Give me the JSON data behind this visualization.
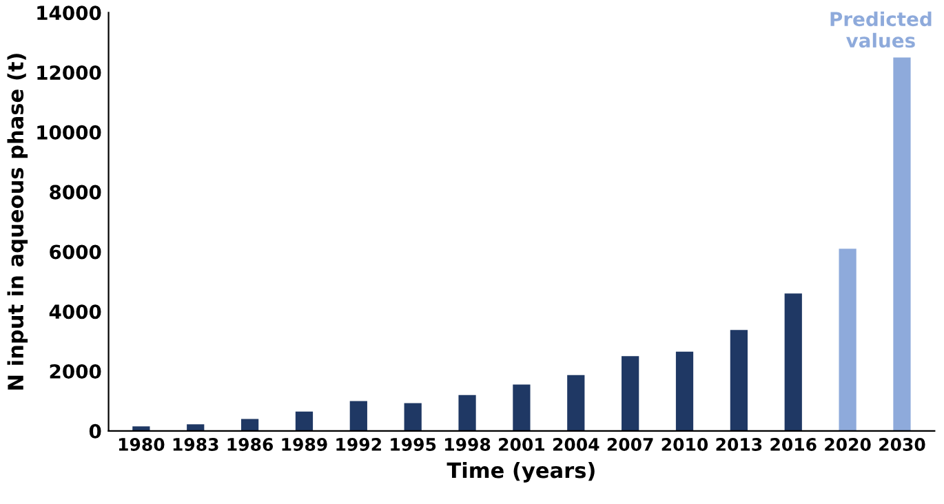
{
  "chart_data": {
    "type": "bar",
    "xlabel": "Time (years)",
    "ylabel": "N input in aqueous phase (t)",
    "categories": [
      "1980",
      "1983",
      "1986",
      "1989",
      "1992",
      "1995",
      "1998",
      "2001",
      "2004",
      "2007",
      "2010",
      "2013",
      "2016",
      "2020",
      "2030"
    ],
    "values": [
      150,
      220,
      400,
      650,
      1000,
      930,
      1200,
      1550,
      1870,
      2500,
      2650,
      3380,
      4600,
      6100,
      12500
    ],
    "colors": [
      "#1f3864",
      "#1f3864",
      "#1f3864",
      "#1f3864",
      "#1f3864",
      "#1f3864",
      "#1f3864",
      "#1f3864",
      "#1f3864",
      "#1f3864",
      "#1f3864",
      "#1f3864",
      "#1f3864",
      "#8eaadb",
      "#8eaadb"
    ],
    "ylim": [
      0,
      14000
    ],
    "yticks": [
      0,
      2000,
      4000,
      6000,
      8000,
      10000,
      12000,
      14000
    ],
    "grid": false,
    "annotations": [
      "Predicted values"
    ]
  }
}
